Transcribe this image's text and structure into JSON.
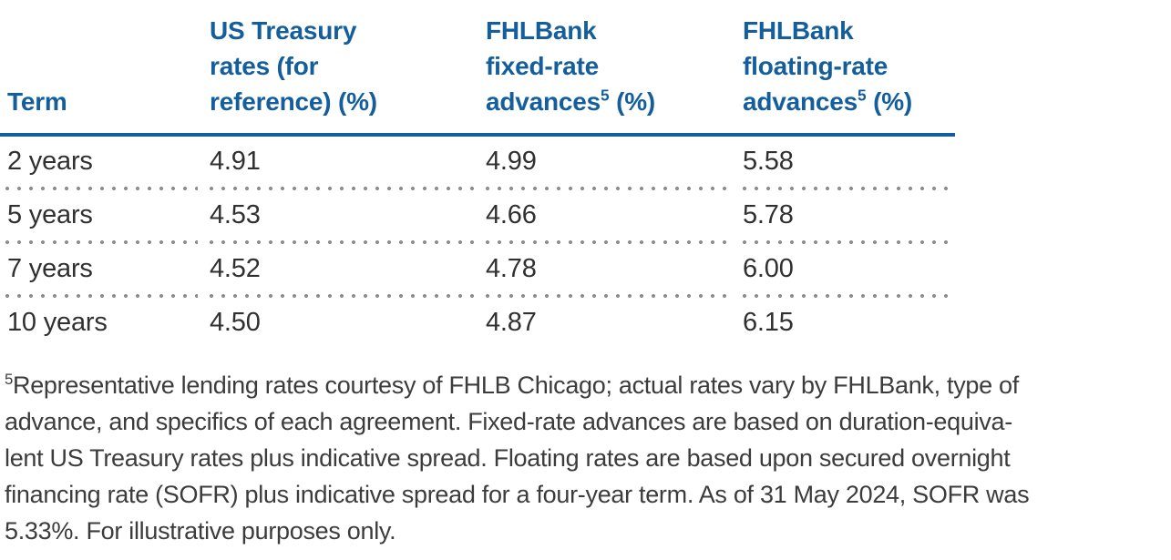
{
  "table": {
    "columns": {
      "term": {
        "label": "Term"
      },
      "treasury": {
        "line1": "US Treasury",
        "line2": "rates (for",
        "line3": "reference) (%)"
      },
      "fixed": {
        "line1": "FHLBank",
        "line2": "fixed-rate",
        "line3_pre": "advances",
        "line3_sup": "5",
        "line3_post": " (%)"
      },
      "floating": {
        "line1": "FHLBank",
        "line2": "floating-rate",
        "line3_pre": "advances",
        "line3_sup": "5",
        "line3_post": " (%)"
      }
    },
    "rows": [
      {
        "term": "2 years",
        "treasury": "4.91",
        "fixed": "4.99",
        "floating": "5.58"
      },
      {
        "term": "5 years",
        "treasury": "4.53",
        "fixed": "4.66",
        "floating": "5.78"
      },
      {
        "term": "7 years",
        "treasury": "4.52",
        "fixed": "4.78",
        "floating": "6.00"
      },
      {
        "term": "10 years",
        "treasury": "4.50",
        "fixed": "4.87",
        "floating": "6.15"
      }
    ]
  },
  "footnote": {
    "marker": "5",
    "lines": [
      "Representative lending rates courtesy of FHLB Chicago; actual rates vary by FHLBank, type of",
      "advance, and specifics of each agreement. Fixed-rate advances are based on duration-equiva-",
      "lent US Treasury rates plus indicative spread. Floating rates are based upon secured overnight",
      "financing rate (SOFR) plus indicative spread for a four-year term. As of 31 May 2024, SOFR was",
      "5.33%. For illustrative purposes only."
    ]
  },
  "chart_data": {
    "type": "table",
    "columns": [
      "Term",
      "US Treasury rates (for reference) (%)",
      "FHLBank fixed-rate advances⁵ (%)",
      "FHLBank floating-rate advances⁵ (%)"
    ],
    "rows": [
      [
        "2 years",
        "4.91",
        "4.99",
        "5.58"
      ],
      [
        "5 years",
        "4.53",
        "4.66",
        "5.78"
      ],
      [
        "7 years",
        "4.52",
        "4.78",
        "6.00"
      ],
      [
        "10 years",
        "4.50",
        "4.87",
        "6.15"
      ]
    ]
  },
  "colors": {
    "header_blue": "#145E9C",
    "rule_blue": "#145E9C",
    "body_text": "#303030",
    "footnote_text": "#3C3C3C",
    "dot_gray": "#8E8E8E",
    "background": "#FFFFFF"
  }
}
